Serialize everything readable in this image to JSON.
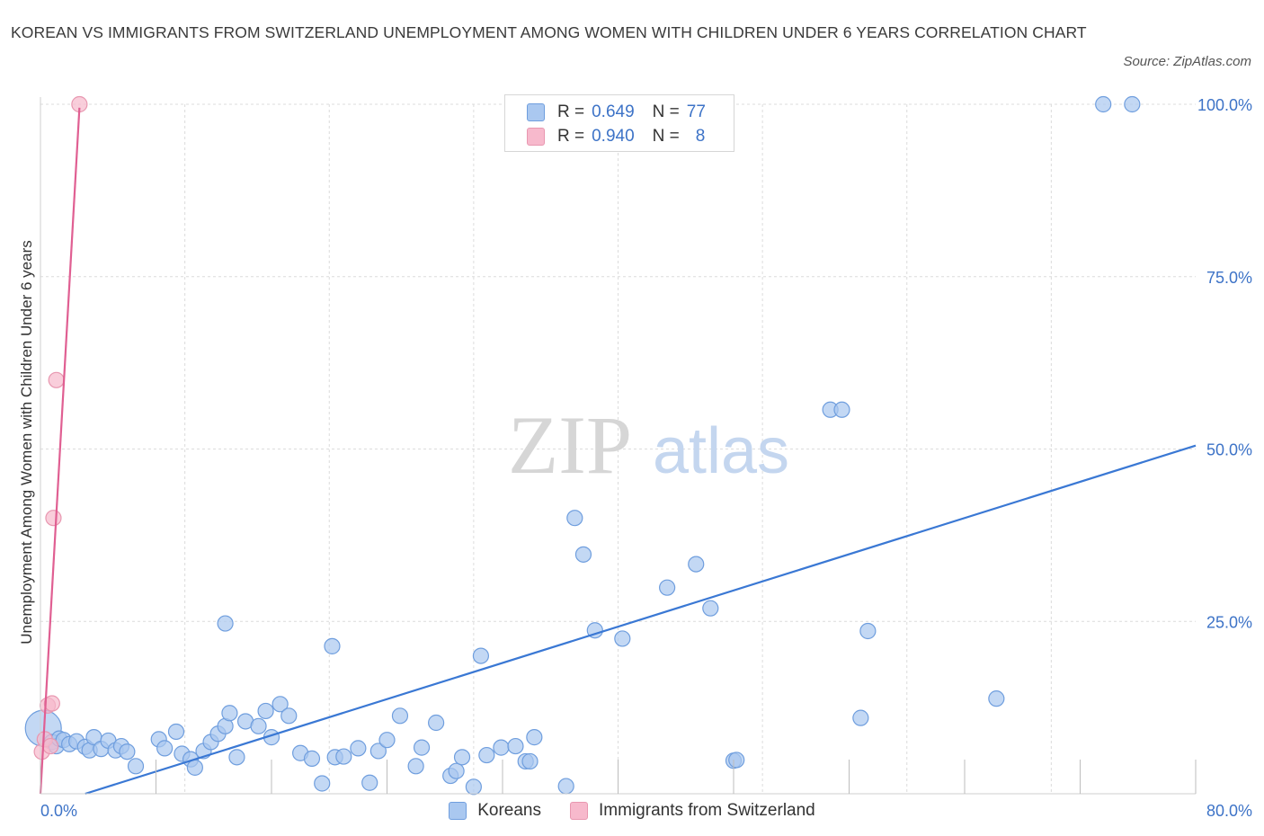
{
  "title": "KOREAN VS IMMIGRANTS FROM SWITZERLAND UNEMPLOYMENT AMONG WOMEN WITH CHILDREN UNDER 6 YEARS CORRELATION CHART",
  "source": "Source: ZipAtlas.com",
  "watermark": {
    "zip": "ZIP",
    "atlas": "atlas"
  },
  "colors": {
    "blue_fill": "#aac8f0",
    "blue_stroke": "#6f9ede",
    "blue_line": "#3a78d4",
    "pink_fill": "#f7b9cc",
    "pink_stroke": "#e897b0",
    "pink_line": "#e05f92",
    "accent_text": "#3d73c7",
    "grid": "#dcdcdc"
  },
  "legend": {
    "rows": [
      {
        "r_label": "R =",
        "r_value": "0.649",
        "n_label": "N =",
        "n_value": "77"
      },
      {
        "r_label": "R =",
        "r_value": "0.940",
        "n_label": "N =",
        "n_value": "8"
      }
    ],
    "series_names": [
      "Koreans",
      "Immigrants from Switzerland"
    ]
  },
  "chart_data": {
    "type": "scatter",
    "title": "KOREAN VS IMMIGRANTS FROM SWITZERLAND UNEMPLOYMENT AMONG WOMEN WITH CHILDREN UNDER 6 YEARS CORRELATION CHART",
    "xlabel": "",
    "ylabel": "Unemployment Among Women with Children Under 6 years",
    "xlim": [
      0,
      80
    ],
    "ylim": [
      0,
      100
    ],
    "x_tick_labels": [
      "0.0%",
      "80.0%"
    ],
    "y_ticks": [
      {
        "value": 25,
        "label": "25.0%"
      },
      {
        "value": 50,
        "label": "50.0%"
      },
      {
        "value": 75,
        "label": "75.0%"
      },
      {
        "value": 100,
        "label": "100.0%"
      }
    ],
    "grid": true,
    "series": [
      {
        "name": "Koreans",
        "R": 0.649,
        "N": 77,
        "trendline": {
          "x": [
            3.1,
            80
          ],
          "y": [
            0,
            50.5
          ]
        },
        "points": [
          {
            "x": 0.2,
            "y": 9.5,
            "big": true
          },
          {
            "x": 0.8,
            "y": 7.5
          },
          {
            "x": 1.1,
            "y": 6.9
          },
          {
            "x": 1.3,
            "y": 8.0
          },
          {
            "x": 1.6,
            "y": 7.8
          },
          {
            "x": 2.0,
            "y": 7.2
          },
          {
            "x": 2.5,
            "y": 7.6
          },
          {
            "x": 3.1,
            "y": 6.8
          },
          {
            "x": 3.4,
            "y": 6.3
          },
          {
            "x": 3.7,
            "y": 8.2
          },
          {
            "x": 4.2,
            "y": 6.5
          },
          {
            "x": 4.7,
            "y": 7.7
          },
          {
            "x": 5.2,
            "y": 6.3
          },
          {
            "x": 5.6,
            "y": 6.9
          },
          {
            "x": 6.0,
            "y": 6.1
          },
          {
            "x": 6.6,
            "y": 4.0
          },
          {
            "x": 8.2,
            "y": 7.9
          },
          {
            "x": 8.6,
            "y": 6.6
          },
          {
            "x": 9.4,
            "y": 9.0
          },
          {
            "x": 9.8,
            "y": 5.8
          },
          {
            "x": 10.4,
            "y": 5.0
          },
          {
            "x": 10.7,
            "y": 3.8
          },
          {
            "x": 11.3,
            "y": 6.2
          },
          {
            "x": 11.8,
            "y": 7.5
          },
          {
            "x": 12.3,
            "y": 8.7
          },
          {
            "x": 12.8,
            "y": 9.8
          },
          {
            "x": 13.1,
            "y": 11.7
          },
          {
            "x": 13.6,
            "y": 5.3
          },
          {
            "x": 14.2,
            "y": 10.5
          },
          {
            "x": 15.1,
            "y": 9.8
          },
          {
            "x": 15.6,
            "y": 12.0
          },
          {
            "x": 16.0,
            "y": 8.2
          },
          {
            "x": 16.6,
            "y": 13.0
          },
          {
            "x": 17.2,
            "y": 11.3
          },
          {
            "x": 18.0,
            "y": 5.9
          },
          {
            "x": 18.8,
            "y": 5.1
          },
          {
            "x": 19.5,
            "y": 1.5
          },
          {
            "x": 20.4,
            "y": 5.3
          },
          {
            "x": 21.0,
            "y": 5.4
          },
          {
            "x": 22.0,
            "y": 6.6
          },
          {
            "x": 22.8,
            "y": 1.6
          },
          {
            "x": 23.4,
            "y": 6.2
          },
          {
            "x": 24.0,
            "y": 7.8
          },
          {
            "x": 24.9,
            "y": 11.3
          },
          {
            "x": 26.0,
            "y": 4.0
          },
          {
            "x": 26.4,
            "y": 6.7
          },
          {
            "x": 27.4,
            "y": 10.3
          },
          {
            "x": 28.4,
            "y": 2.6
          },
          {
            "x": 28.8,
            "y": 3.3
          },
          {
            "x": 29.2,
            "y": 5.3
          },
          {
            "x": 30.0,
            "y": 1.0
          },
          {
            "x": 30.9,
            "y": 5.6
          },
          {
            "x": 31.9,
            "y": 6.7
          },
          {
            "x": 32.9,
            "y": 6.9
          },
          {
            "x": 33.6,
            "y": 4.7
          },
          {
            "x": 33.9,
            "y": 4.7
          },
          {
            "x": 34.2,
            "y": 8.2
          },
          {
            "x": 36.4,
            "y": 1.1
          },
          {
            "x": 12.8,
            "y": 24.7
          },
          {
            "x": 20.2,
            "y": 21.4
          },
          {
            "x": 30.5,
            "y": 20.0
          },
          {
            "x": 37.0,
            "y": 40.0
          },
          {
            "x": 38.4,
            "y": 23.7
          },
          {
            "x": 37.6,
            "y": 34.7
          },
          {
            "x": 40.3,
            "y": 22.5
          },
          {
            "x": 43.4,
            "y": 29.9
          },
          {
            "x": 45.4,
            "y": 33.3
          },
          {
            "x": 46.4,
            "y": 26.9
          },
          {
            "x": 48.0,
            "y": 4.8
          },
          {
            "x": 48.2,
            "y": 4.9
          },
          {
            "x": 54.7,
            "y": 55.7
          },
          {
            "x": 55.5,
            "y": 55.7
          },
          {
            "x": 56.8,
            "y": 11.0
          },
          {
            "x": 57.3,
            "y": 23.6
          },
          {
            "x": 66.2,
            "y": 13.8
          },
          {
            "x": 73.6,
            "y": 100
          },
          {
            "x": 75.6,
            "y": 100
          }
        ]
      },
      {
        "name": "Immigrants from Switzerland",
        "R": 0.94,
        "N": 8,
        "trendline": {
          "x": [
            0,
            2.7
          ],
          "y": [
            0,
            99.5
          ]
        },
        "points": [
          {
            "x": 0.1,
            "y": 6.1
          },
          {
            "x": 0.3,
            "y": 7.9
          },
          {
            "x": 0.5,
            "y": 12.8
          },
          {
            "x": 0.7,
            "y": 6.9
          },
          {
            "x": 0.8,
            "y": 13.1
          },
          {
            "x": 0.9,
            "y": 40.0
          },
          {
            "x": 1.1,
            "y": 60.0
          },
          {
            "x": 2.7,
            "y": 100
          }
        ]
      }
    ]
  }
}
